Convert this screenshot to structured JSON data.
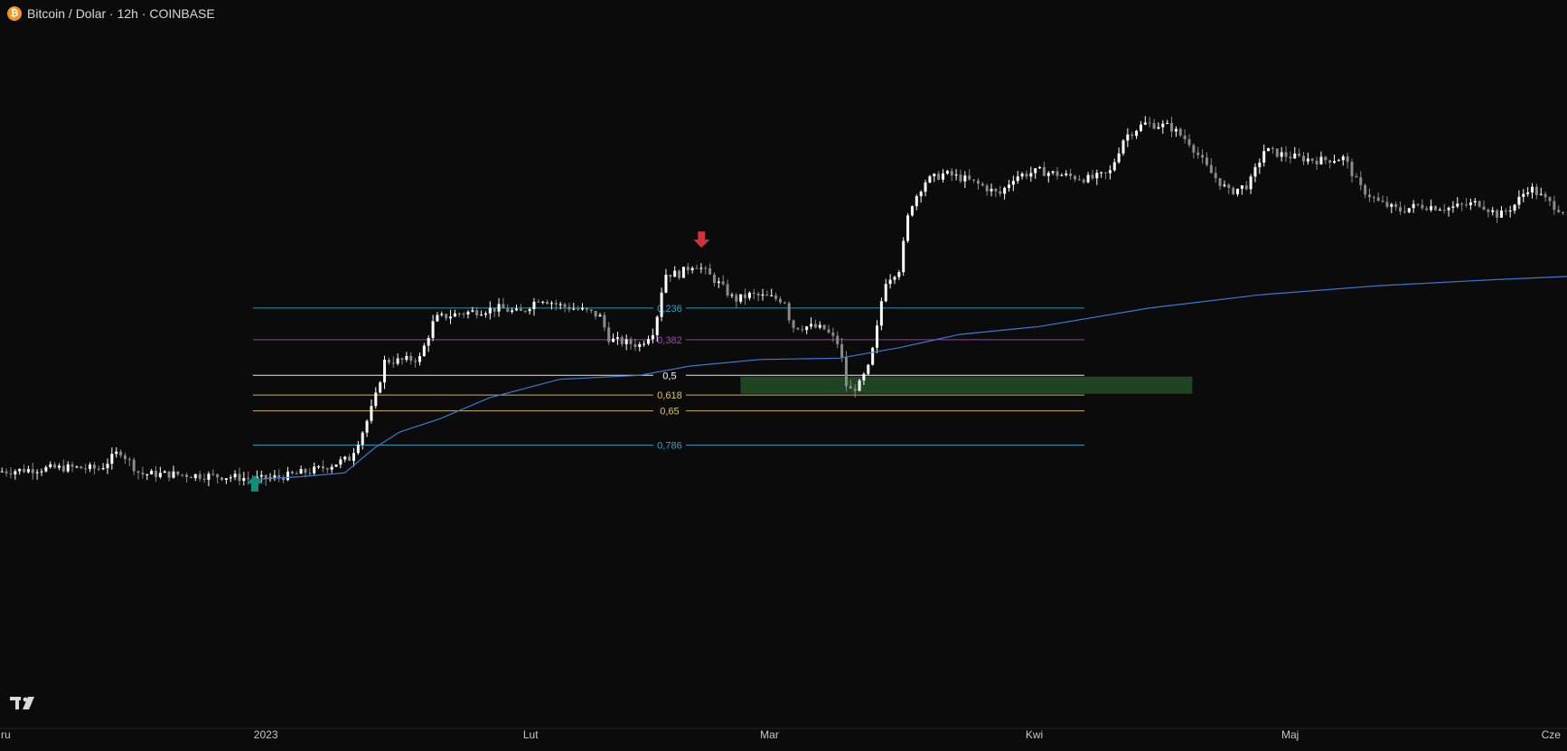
{
  "header": {
    "icon_glyph": "₿",
    "title": "Bitcoin / Dolar · 12h · COINBASE"
  },
  "chart_data": {
    "type": "candlestick",
    "title": "Bitcoin / Dolar · 12h · COINBASE",
    "x_axis_labels": [
      "ru",
      "2023",
      "Lut",
      "Mar",
      "Kwi",
      "Maj",
      "Cze"
    ],
    "y_range": [
      10000,
      35000
    ],
    "grid": false,
    "legend": "none",
    "colors": {
      "background": "#0b0b0b",
      "up_candle": "#ffffff",
      "down_candle": "#8a8a8a",
      "moving_average": "#3c78d8",
      "zone": "#214a25",
      "arrow_up": "#0d8f79",
      "arrow_down": "#d32f3c",
      "axis_text": "#c7c7c7",
      "axis_line": "#222222"
    },
    "price_anchors": [
      {
        "x": 0,
        "y": 16800
      },
      {
        "x": 40,
        "y": 16900
      },
      {
        "x": 70,
        "y": 16950
      },
      {
        "x": 100,
        "y": 16900
      },
      {
        "x": 120,
        "y": 17600
      },
      {
        "x": 140,
        "y": 16700
      },
      {
        "x": 170,
        "y": 16700
      },
      {
        "x": 200,
        "y": 16650
      },
      {
        "x": 230,
        "y": 16600
      },
      {
        "x": 260,
        "y": 16500
      },
      {
        "x": 290,
        "y": 16650
      },
      {
        "x": 320,
        "y": 16900
      },
      {
        "x": 350,
        "y": 17300
      },
      {
        "x": 365,
        "y": 18500
      },
      {
        "x": 375,
        "y": 19500
      },
      {
        "x": 385,
        "y": 21000
      },
      {
        "x": 400,
        "y": 21000
      },
      {
        "x": 420,
        "y": 21100
      },
      {
        "x": 435,
        "y": 22600
      },
      {
        "x": 460,
        "y": 22800
      },
      {
        "x": 480,
        "y": 22900
      },
      {
        "x": 500,
        "y": 23000
      },
      {
        "x": 520,
        "y": 22800
      },
      {
        "x": 540,
        "y": 23400
      },
      {
        "x": 560,
        "y": 23100
      },
      {
        "x": 585,
        "y": 22900
      },
      {
        "x": 600,
        "y": 22700
      },
      {
        "x": 610,
        "y": 21800
      },
      {
        "x": 625,
        "y": 21700
      },
      {
        "x": 640,
        "y": 21600
      },
      {
        "x": 655,
        "y": 22200
      },
      {
        "x": 665,
        "y": 24300
      },
      {
        "x": 680,
        "y": 24300
      },
      {
        "x": 695,
        "y": 24700
      },
      {
        "x": 705,
        "y": 24400
      },
      {
        "x": 720,
        "y": 23900
      },
      {
        "x": 735,
        "y": 23300
      },
      {
        "x": 750,
        "y": 23500
      },
      {
        "x": 770,
        "y": 23400
      },
      {
        "x": 785,
        "y": 23300
      },
      {
        "x": 792,
        "y": 22300
      },
      {
        "x": 810,
        "y": 22300
      },
      {
        "x": 825,
        "y": 22200
      },
      {
        "x": 840,
        "y": 21600
      },
      {
        "x": 848,
        "y": 19800
      },
      {
        "x": 860,
        "y": 20100
      },
      {
        "x": 870,
        "y": 20800
      },
      {
        "x": 878,
        "y": 22300
      },
      {
        "x": 885,
        "y": 24000
      },
      {
        "x": 900,
        "y": 24500
      },
      {
        "x": 910,
        "y": 26800
      },
      {
        "x": 925,
        "y": 27800
      },
      {
        "x": 945,
        "y": 28100
      },
      {
        "x": 965,
        "y": 27900
      },
      {
        "x": 985,
        "y": 27600
      },
      {
        "x": 1000,
        "y": 27300
      },
      {
        "x": 1015,
        "y": 28000
      },
      {
        "x": 1040,
        "y": 28200
      },
      {
        "x": 1070,
        "y": 28000
      },
      {
        "x": 1090,
        "y": 27900
      },
      {
        "x": 1110,
        "y": 28100
      },
      {
        "x": 1125,
        "y": 29500
      },
      {
        "x": 1145,
        "y": 30000
      },
      {
        "x": 1170,
        "y": 29900
      },
      {
        "x": 1190,
        "y": 29300
      },
      {
        "x": 1210,
        "y": 28200
      },
      {
        "x": 1230,
        "y": 27400
      },
      {
        "x": 1250,
        "y": 27700
      },
      {
        "x": 1265,
        "y": 29000
      },
      {
        "x": 1285,
        "y": 28800
      },
      {
        "x": 1300,
        "y": 28700
      },
      {
        "x": 1320,
        "y": 28600
      },
      {
        "x": 1345,
        "y": 28700
      },
      {
        "x": 1360,
        "y": 27600
      },
      {
        "x": 1380,
        "y": 27000
      },
      {
        "x": 1400,
        "y": 26700
      },
      {
        "x": 1420,
        "y": 26900
      },
      {
        "x": 1450,
        "y": 26800
      },
      {
        "x": 1480,
        "y": 27000
      },
      {
        "x": 1500,
        "y": 26500
      },
      {
        "x": 1515,
        "y": 26900
      },
      {
        "x": 1530,
        "y": 27600
      },
      {
        "x": 1550,
        "y": 27000
      },
      {
        "x": 1568,
        "y": 26600
      }
    ],
    "moving_average": [
      {
        "x": 255,
        "y": 16500
      },
      {
        "x": 300,
        "y": 16600
      },
      {
        "x": 345,
        "y": 16750
      },
      {
        "x": 375,
        "y": 17700
      },
      {
        "x": 400,
        "y": 18300
      },
      {
        "x": 440,
        "y": 18800
      },
      {
        "x": 490,
        "y": 19600
      },
      {
        "x": 560,
        "y": 20300
      },
      {
        "x": 640,
        "y": 20450
      },
      {
        "x": 690,
        "y": 20800
      },
      {
        "x": 760,
        "y": 21050
      },
      {
        "x": 840,
        "y": 21100
      },
      {
        "x": 900,
        "y": 21500
      },
      {
        "x": 960,
        "y": 22000
      },
      {
        "x": 1040,
        "y": 22300
      },
      {
        "x": 1150,
        "y": 23000
      },
      {
        "x": 1260,
        "y": 23500
      },
      {
        "x": 1380,
        "y": 23850
      },
      {
        "x": 1480,
        "y": 24050
      },
      {
        "x": 1568,
        "y": 24200
      }
    ],
    "fib_levels": [
      {
        "label": "0,236",
        "price": 23000,
        "color": "#26a6c8"
      },
      {
        "label": "0,382",
        "price": 21800,
        "color": "#b13cc7"
      },
      {
        "label": "0,5",
        "price": 20450,
        "color": "#ffffff"
      },
      {
        "label": "0,618",
        "price": 19700,
        "color": "#e3c25a"
      },
      {
        "label": "0,65",
        "price": 19100,
        "color": "#e3c25a"
      },
      {
        "label": "0,786",
        "price": 17800,
        "color": "#26a6c8"
      }
    ],
    "zone": {
      "price_top": 20400,
      "price_bottom": 19750
    },
    "signals": [
      {
        "type": "buy",
        "price": 16350
      },
      {
        "type": "sell",
        "price": 25600
      }
    ]
  }
}
